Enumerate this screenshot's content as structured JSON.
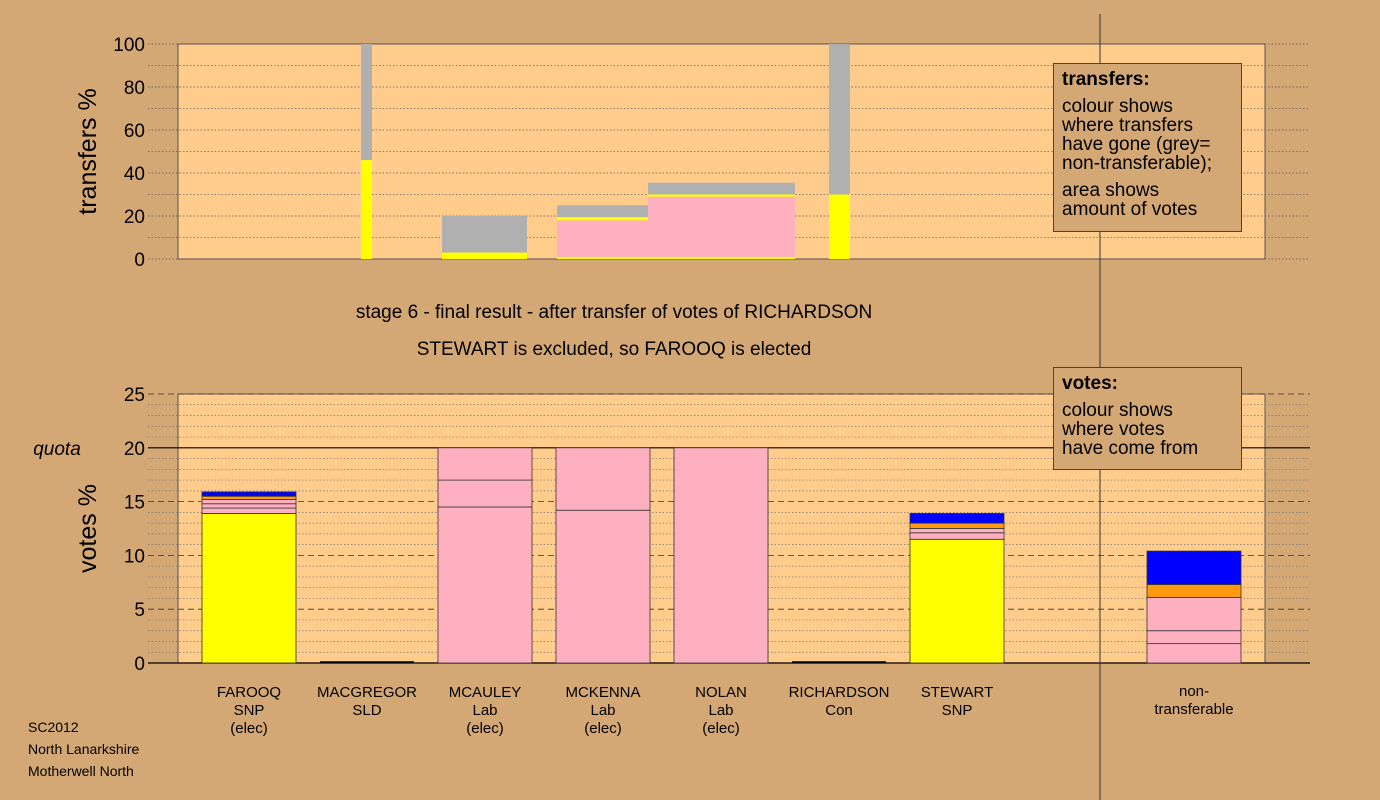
{
  "stage_lines": [
    "stage 6 - final result - after transfer of votes of RICHARDSON",
    "STEWART is excluded, so FAROOQ is elected"
  ],
  "transfers_legend": {
    "title": "transfers:",
    "lines1": [
      "colour shows",
      "where transfers",
      "have gone (grey=",
      "non-transferable);"
    ],
    "lines2": [
      "area shows",
      "amount of votes"
    ]
  },
  "votes_legend": {
    "title": "votes:",
    "lines": [
      "colour shows",
      "where votes",
      "have come from"
    ]
  },
  "meta": [
    "SC2012",
    "North Lanarkshire",
    "Motherwell North"
  ],
  "colors": {
    "background": "#d4a874",
    "plot_area": "#ffcc8c",
    "SNP": "#ffff00",
    "Lab": "#ffb0c0",
    "Con": "#0000ff",
    "SLD": "#ff9910",
    "non_transferable": "#b0b0b0"
  },
  "chart_data": [
    {
      "type": "bar",
      "ylabel": "transfers %",
      "ylim": [
        0,
        100
      ],
      "yticks": [
        0,
        20,
        40,
        60,
        80,
        100
      ],
      "grid": true,
      "columns": [
        {
          "segments": [
            {
              "color": "SNP",
              "value": 46
            },
            {
              "color": "non_transferable",
              "value": 54
            }
          ]
        },
        {
          "segments": [
            {
              "color": "SNP",
              "value": 3
            },
            {
              "color": "non_transferable",
              "value": 17
            }
          ]
        },
        {
          "segments": [
            {
              "color": "SNP",
              "value": 1
            },
            {
              "color": "Lab",
              "value": 17
            },
            {
              "color": "SNP",
              "value": 1.5
            },
            {
              "color": "non_transferable",
              "value": 5.5
            }
          ]
        },
        {
          "segments": [
            {
              "color": "SNP",
              "value": 1
            },
            {
              "color": "Lab",
              "value": 28
            },
            {
              "color": "SNP",
              "value": 1
            },
            {
              "color": "non_transferable",
              "value": 5.5
            }
          ]
        },
        {
          "segments": [
            {
              "color": "SNP",
              "value": 30
            },
            {
              "color": "non_transferable",
              "value": 70
            }
          ]
        }
      ]
    },
    {
      "type": "bar",
      "ylabel": "votes %",
      "ylim": [
        0,
        25
      ],
      "yticks": [
        0,
        5,
        10,
        15,
        20,
        25
      ],
      "quota": {
        "label": "quota",
        "value": 20
      },
      "grid": true,
      "categories": [
        {
          "lines": [
            "FAROOQ",
            "SNP",
            "(elec)"
          ],
          "segments": [
            {
              "color": "SNP",
              "value": 13.9
            },
            {
              "color": "Lab",
              "value": 0.5
            },
            {
              "color": "Lab",
              "value": 0.4
            },
            {
              "color": "Lab",
              "value": 0.4
            },
            {
              "color": "SLD",
              "value": 0.3
            },
            {
              "color": "Con",
              "value": 0.4
            }
          ]
        },
        {
          "lines": [
            "MACGREGOR",
            "SLD"
          ],
          "segments": []
        },
        {
          "lines": [
            "MCAULEY",
            "Lab",
            "(elec)"
          ],
          "segments": [
            {
              "color": "Lab",
              "value": 14.5
            },
            {
              "color": "Lab",
              "value": 2.5
            },
            {
              "color": "Lab",
              "value": 3
            }
          ]
        },
        {
          "lines": [
            "MCKENNA",
            "Lab",
            "(elec)"
          ],
          "segments": [
            {
              "color": "Lab",
              "value": 14.2
            },
            {
              "color": "Lab",
              "value": 5.8
            }
          ]
        },
        {
          "lines": [
            "NOLAN",
            "Lab",
            "(elec)"
          ],
          "segments": [
            {
              "color": "Lab",
              "value": 20
            }
          ]
        },
        {
          "lines": [
            "RICHARDSON",
            "Con"
          ],
          "segments": []
        },
        {
          "lines": [
            "STEWART",
            "SNP"
          ],
          "segments": [
            {
              "color": "SNP",
              "value": 11.5
            },
            {
              "color": "Lab",
              "value": 0.6
            },
            {
              "color": "Lab",
              "value": 0.4
            },
            {
              "color": "SLD",
              "value": 0.5
            },
            {
              "color": "Con",
              "value": 0.9
            }
          ]
        },
        {
          "lines": [
            "non-",
            "transferable"
          ],
          "segments": [
            {
              "color": "Lab",
              "value": 1.8
            },
            {
              "color": "Lab",
              "value": 1.2
            },
            {
              "color": "Lab",
              "value": 3.1
            },
            {
              "color": "SLD",
              "value": 1.2
            },
            {
              "color": "Con",
              "value": 3.1
            }
          ]
        }
      ]
    }
  ]
}
